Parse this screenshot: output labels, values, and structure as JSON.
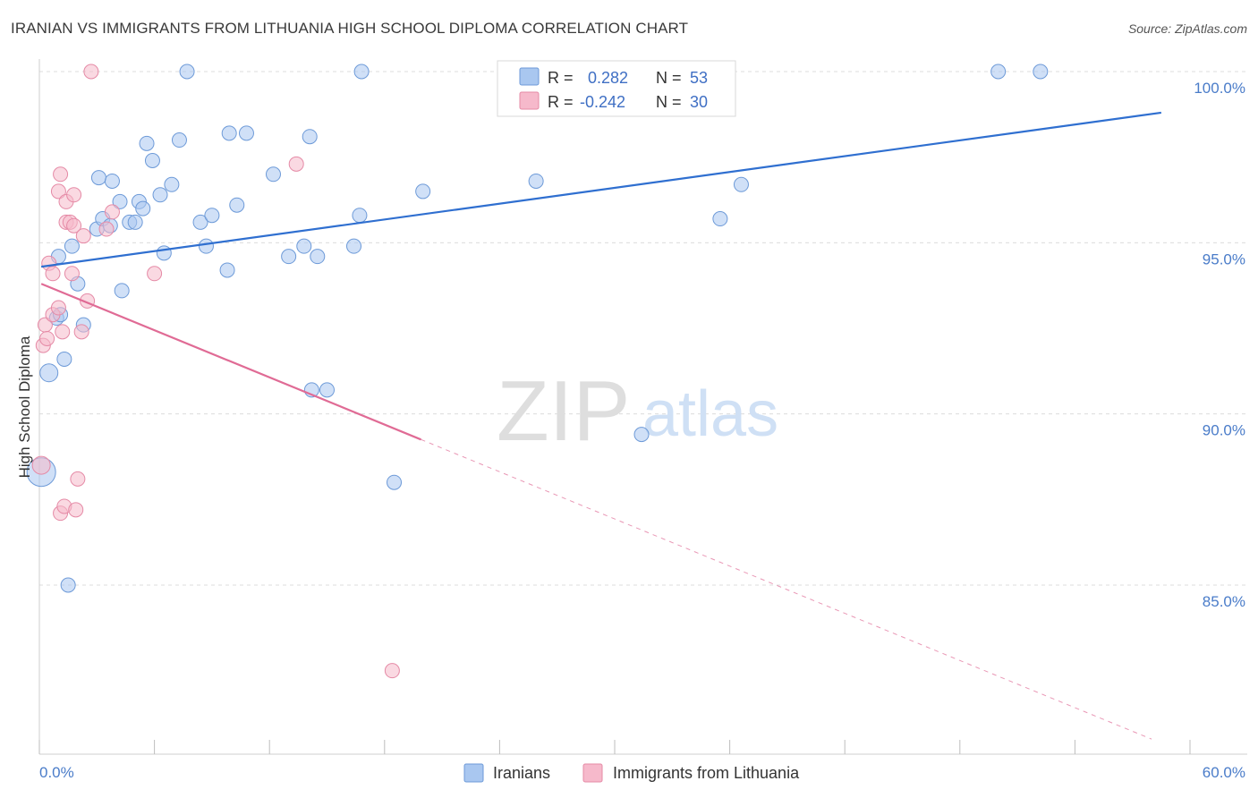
{
  "header": {
    "title": "IRANIAN VS IMMIGRANTS FROM LITHUANIA HIGH SCHOOL DIPLOMA CORRELATION CHART",
    "source": "Source: ZipAtlas.com"
  },
  "watermark": {
    "zip": "ZIP",
    "atlas": "atlas"
  },
  "stats": {
    "rows": [
      {
        "r_label": "R =",
        "r_value": "0.282",
        "n_label": "N =",
        "n_value": "53",
        "color": "#a9c7f0"
      },
      {
        "r_label": "R =",
        "r_value": "-0.242",
        "n_label": "N =",
        "n_value": "30",
        "color": "#f6b9cb"
      }
    ]
  },
  "legend": [
    {
      "label": "Iranians",
      "color": "#a9c7f0"
    },
    {
      "label": "Immigrants from Lithuania",
      "color": "#f6b9cb"
    }
  ],
  "chart_data": {
    "type": "scatter",
    "ylabel": "High School Diploma",
    "xlim": [
      0,
      60
    ],
    "ylim": [
      80.4,
      101.0
    ],
    "x_tick_labels": [
      "0.0%",
      "60.0%"
    ],
    "y_ticks": [
      {
        "value": 100,
        "label": "100.0%"
      },
      {
        "value": 95,
        "label": "95.0%"
      },
      {
        "value": 90,
        "label": "90.0%"
      },
      {
        "value": 85,
        "label": "85.0%"
      }
    ],
    "grid": true,
    "series": [
      {
        "name": "Iranians",
        "color": "#a9c7f0",
        "stroke": "#6d9ad8",
        "trend_color": "#2f6fd0",
        "trend": {
          "x0": 0.1,
          "y0": 94.3,
          "x1": 58.5,
          "y1": 98.8,
          "dash_from": null
        },
        "points": [
          {
            "x": 0.1,
            "y": 88.3,
            "s": 16
          },
          {
            "x": 0.5,
            "y": 91.2,
            "s": 10
          },
          {
            "x": 0.9,
            "y": 92.8,
            "s": 8
          },
          {
            "x": 1.0,
            "y": 94.6,
            "s": 8
          },
          {
            "x": 1.1,
            "y": 92.9,
            "s": 8
          },
          {
            "x": 1.3,
            "y": 91.6,
            "s": 8
          },
          {
            "x": 1.5,
            "y": 85.0,
            "s": 8
          },
          {
            "x": 1.7,
            "y": 94.9,
            "s": 8
          },
          {
            "x": 2.0,
            "y": 93.8,
            "s": 8
          },
          {
            "x": 2.3,
            "y": 92.6,
            "s": 8
          },
          {
            "x": 3.0,
            "y": 95.4,
            "s": 8
          },
          {
            "x": 3.1,
            "y": 96.9,
            "s": 8
          },
          {
            "x": 3.3,
            "y": 95.7,
            "s": 8
          },
          {
            "x": 3.7,
            "y": 95.5,
            "s": 8
          },
          {
            "x": 3.8,
            "y": 96.8,
            "s": 8
          },
          {
            "x": 4.2,
            "y": 96.2,
            "s": 8
          },
          {
            "x": 4.3,
            "y": 93.6,
            "s": 8
          },
          {
            "x": 4.7,
            "y": 95.6,
            "s": 8
          },
          {
            "x": 5.0,
            "y": 95.6,
            "s": 8
          },
          {
            "x": 5.2,
            "y": 96.2,
            "s": 8
          },
          {
            "x": 5.4,
            "y": 96.0,
            "s": 8
          },
          {
            "x": 5.6,
            "y": 97.9,
            "s": 8
          },
          {
            "x": 5.9,
            "y": 97.4,
            "s": 8
          },
          {
            "x": 6.3,
            "y": 96.4,
            "s": 8
          },
          {
            "x": 6.5,
            "y": 94.7,
            "s": 8
          },
          {
            "x": 6.9,
            "y": 96.7,
            "s": 8
          },
          {
            "x": 7.3,
            "y": 98.0,
            "s": 8
          },
          {
            "x": 7.7,
            "y": 100.0,
            "s": 8
          },
          {
            "x": 8.4,
            "y": 95.6,
            "s": 8
          },
          {
            "x": 8.7,
            "y": 94.9,
            "s": 8
          },
          {
            "x": 9.0,
            "y": 95.8,
            "s": 8
          },
          {
            "x": 9.8,
            "y": 94.2,
            "s": 8
          },
          {
            "x": 9.9,
            "y": 98.2,
            "s": 8
          },
          {
            "x": 10.3,
            "y": 96.1,
            "s": 8
          },
          {
            "x": 10.8,
            "y": 98.2,
            "s": 8
          },
          {
            "x": 12.2,
            "y": 97.0,
            "s": 8
          },
          {
            "x": 13.0,
            "y": 94.6,
            "s": 8
          },
          {
            "x": 13.8,
            "y": 94.9,
            "s": 8
          },
          {
            "x": 14.1,
            "y": 98.1,
            "s": 8
          },
          {
            "x": 14.2,
            "y": 90.7,
            "s": 8
          },
          {
            "x": 14.5,
            "y": 94.6,
            "s": 8
          },
          {
            "x": 15.0,
            "y": 90.7,
            "s": 8
          },
          {
            "x": 16.4,
            "y": 94.9,
            "s": 8
          },
          {
            "x": 16.7,
            "y": 95.8,
            "s": 8
          },
          {
            "x": 16.8,
            "y": 100.0,
            "s": 8
          },
          {
            "x": 18.5,
            "y": 88.0,
            "s": 8
          },
          {
            "x": 20.0,
            "y": 96.5,
            "s": 8
          },
          {
            "x": 25.9,
            "y": 96.8,
            "s": 8
          },
          {
            "x": 31.4,
            "y": 89.4,
            "s": 8
          },
          {
            "x": 35.5,
            "y": 95.7,
            "s": 8
          },
          {
            "x": 36.6,
            "y": 96.7,
            "s": 8
          },
          {
            "x": 50.0,
            "y": 100.0,
            "s": 8
          },
          {
            "x": 52.2,
            "y": 100.0,
            "s": 8
          }
        ]
      },
      {
        "name": "Immigrants from Lithuania",
        "color": "#f6b9cb",
        "stroke": "#e58aa6",
        "trend_color": "#e06b95",
        "trend": {
          "x0": 0.1,
          "y0": 93.8,
          "x1": 58.0,
          "y1": 80.5,
          "dash_from": 19.9
        },
        "points": [
          {
            "x": 0.1,
            "y": 88.5,
            "s": 10
          },
          {
            "x": 0.2,
            "y": 92.0,
            "s": 8
          },
          {
            "x": 0.3,
            "y": 92.6,
            "s": 8
          },
          {
            "x": 0.4,
            "y": 92.2,
            "s": 8
          },
          {
            "x": 0.5,
            "y": 94.4,
            "s": 8
          },
          {
            "x": 0.7,
            "y": 92.9,
            "s": 8
          },
          {
            "x": 0.7,
            "y": 94.1,
            "s": 8
          },
          {
            "x": 1.0,
            "y": 93.1,
            "s": 8
          },
          {
            "x": 1.0,
            "y": 96.5,
            "s": 8
          },
          {
            "x": 1.1,
            "y": 97.0,
            "s": 8
          },
          {
            "x": 1.2,
            "y": 92.4,
            "s": 8
          },
          {
            "x": 1.1,
            "y": 87.1,
            "s": 8
          },
          {
            "x": 1.3,
            "y": 87.3,
            "s": 8
          },
          {
            "x": 1.4,
            "y": 95.6,
            "s": 8
          },
          {
            "x": 1.4,
            "y": 96.2,
            "s": 8
          },
          {
            "x": 1.6,
            "y": 95.6,
            "s": 8
          },
          {
            "x": 1.7,
            "y": 94.1,
            "s": 8
          },
          {
            "x": 1.8,
            "y": 95.5,
            "s": 8
          },
          {
            "x": 1.8,
            "y": 96.4,
            "s": 8
          },
          {
            "x": 1.9,
            "y": 87.2,
            "s": 8
          },
          {
            "x": 2.0,
            "y": 88.1,
            "s": 8
          },
          {
            "x": 2.2,
            "y": 92.4,
            "s": 8
          },
          {
            "x": 2.3,
            "y": 95.2,
            "s": 8
          },
          {
            "x": 2.5,
            "y": 93.3,
            "s": 8
          },
          {
            "x": 2.7,
            "y": 100.0,
            "s": 8
          },
          {
            "x": 3.5,
            "y": 95.4,
            "s": 8
          },
          {
            "x": 3.8,
            "y": 95.9,
            "s": 8
          },
          {
            "x": 6.0,
            "y": 94.1,
            "s": 8
          },
          {
            "x": 13.4,
            "y": 97.3,
            "s": 8
          },
          {
            "x": 18.4,
            "y": 82.5,
            "s": 8
          }
        ]
      }
    ]
  }
}
